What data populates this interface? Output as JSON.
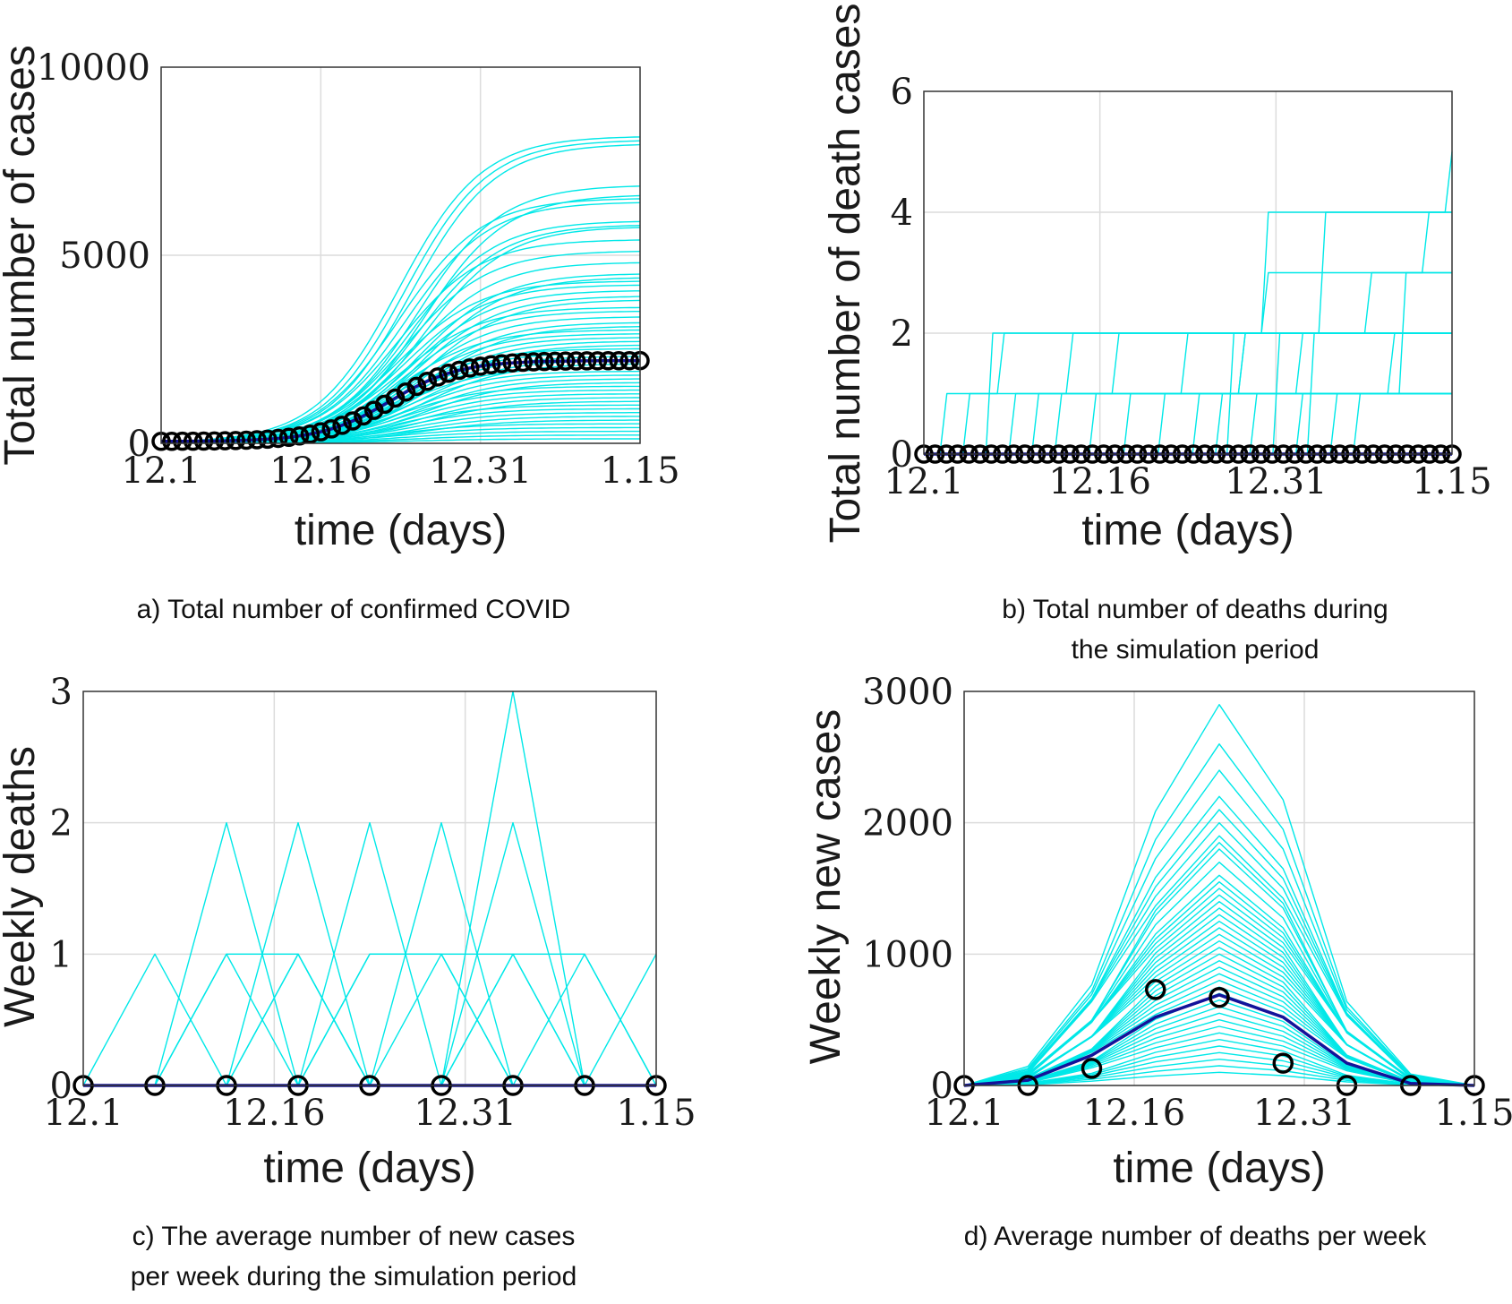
{
  "colors": {
    "simulation": "#00e8e8",
    "average": "#13139a",
    "observed": "#000000",
    "grid": "#dcdcdc",
    "axes": "#333333"
  },
  "chart_data": [
    {
      "id": "a",
      "type": "line",
      "caption": [
        "a) Total number of confirmed COVID"
      ],
      "xlabel": "time (days)",
      "ylabel": "Total number of cases",
      "xticks": [
        "12.1",
        "12.16",
        "12.31",
        "1.15"
      ],
      "yticks": [
        "0",
        "5000",
        "10000"
      ],
      "ylim": [
        0,
        10000
      ],
      "xlim": [
        0,
        46
      ],
      "grid": true,
      "series": [
        {
          "name": "simulations",
          "kind": "logistic-family",
          "final_values": [
            8150,
            8050,
            7950,
            6850,
            6600,
            6500,
            6400,
            5900,
            5800,
            5750,
            5400,
            5100,
            4800,
            4500,
            4400,
            4300,
            4200,
            4050,
            3900,
            3800,
            3600,
            3500,
            3350,
            3200,
            3100,
            3000,
            2900,
            2800,
            2700,
            2600,
            2500,
            2400,
            2300,
            2200,
            2100,
            2000,
            1900,
            1800,
            1700,
            1600,
            1500,
            1400,
            1300,
            1200,
            1100,
            1000,
            900,
            800,
            700,
            600,
            500,
            400,
            300,
            200,
            100
          ],
          "midpoint_day": 24,
          "rate": 0.25
        },
        {
          "name": "average",
          "final_value": 2150,
          "midpoint_day": 22,
          "rate": 0.3,
          "offset": 50
        },
        {
          "name": "observed",
          "marker": "circle",
          "final_value": 2150,
          "midpoint_day": 22,
          "rate": 0.3,
          "offset": 50,
          "marker_count": 46
        }
      ]
    },
    {
      "id": "b",
      "type": "line",
      "caption": [
        "b) Total number of deaths during",
        "the simulation period"
      ],
      "xlabel": "time (days)",
      "ylabel": "Total number of death cases",
      "xticks": [
        "12.1",
        "12.16",
        "12.31",
        "1.15"
      ],
      "yticks": [
        "0",
        "2",
        "4",
        "6"
      ],
      "ylim": [
        0,
        6
      ],
      "xlim": [
        0,
        46
      ],
      "grid": true,
      "series": [
        {
          "name": "simulations",
          "kind": "step",
          "lines": [
            {
              "x": [
                0,
                2,
                46
              ],
              "y": [
                0,
                1,
                1
              ]
            },
            {
              "x": [
                0,
                4,
                7,
                46
              ],
              "y": [
                0,
                1,
                2,
                2
              ]
            },
            {
              "x": [
                0,
                6,
                46
              ],
              "y": [
                0,
                2,
                2
              ]
            },
            {
              "x": [
                0,
                8,
                13,
                46
              ],
              "y": [
                0,
                1,
                2,
                2
              ]
            },
            {
              "x": [
                0,
                10,
                46
              ],
              "y": [
                0,
                1,
                1
              ]
            },
            {
              "x": [
                0,
                12,
                17,
                46
              ],
              "y": [
                0,
                1,
                2,
                2
              ]
            },
            {
              "x": [
                0,
                15,
                46
              ],
              "y": [
                0,
                1,
                1
              ]
            },
            {
              "x": [
                0,
                18,
                23,
                46
              ],
              "y": [
                0,
                1,
                2,
                2
              ]
            },
            {
              "x": [
                0,
                21,
                46
              ],
              "y": [
                0,
                1,
                1
              ]
            },
            {
              "x": [
                0,
                24,
                28,
                46
              ],
              "y": [
                0,
                1,
                2,
                2
              ]
            },
            {
              "x": [
                0,
                26,
                28,
                30,
                46
              ],
              "y": [
                0,
                1,
                2,
                3,
                3
              ]
            },
            {
              "x": [
                0,
                27,
                30,
                46
              ],
              "y": [
                0,
                2,
                4,
                4
              ]
            },
            {
              "x": [
                0,
                29,
                33,
                35,
                46
              ],
              "y": [
                0,
                1,
                2,
                4,
                4
              ]
            },
            {
              "x": [
                0,
                31,
                46
              ],
              "y": [
                0,
                2,
                2
              ]
            },
            {
              "x": [
                0,
                33,
                46
              ],
              "y": [
                0,
                1,
                1
              ]
            },
            {
              "x": [
                0,
                34,
                39,
                46
              ],
              "y": [
                0,
                2,
                3,
                3
              ]
            },
            {
              "x": [
                0,
                36,
                41,
                46
              ],
              "y": [
                0,
                1,
                2,
                2
              ]
            },
            {
              "x": [
                0,
                38,
                42,
                44,
                46
              ],
              "y": [
                0,
                1,
                3,
                4,
                5
              ]
            }
          ]
        },
        {
          "name": "average",
          "x": [
            0,
            46
          ],
          "y": [
            0,
            0
          ]
        },
        {
          "name": "observed",
          "marker": "circle",
          "value": 0,
          "marker_count": 48
        }
      ]
    },
    {
      "id": "c",
      "type": "line",
      "caption": [
        "c) The average number of new cases",
        "per week during the simulation period"
      ],
      "xlabel": "time (days)",
      "ylabel": "Weekly deaths",
      "xticks": [
        "12.1",
        "12.16",
        "12.31",
        "1.15"
      ],
      "yticks": [
        "0",
        "1",
        "2",
        "3"
      ],
      "ylim": [
        0,
        3
      ],
      "xlim": [
        0,
        8
      ],
      "grid": true,
      "series": [
        {
          "name": "simulations",
          "lines": [
            [
              0,
              1,
              0,
              0,
              0,
              0,
              0,
              0,
              0
            ],
            [
              0,
              0,
              2,
              0,
              0,
              0,
              0,
              0,
              0
            ],
            [
              0,
              0,
              1,
              1,
              0,
              0,
              0,
              0,
              0
            ],
            [
              0,
              0,
              0,
              2,
              0,
              0,
              0,
              0,
              0
            ],
            [
              0,
              0,
              0,
              1,
              0,
              1,
              0,
              0,
              0
            ],
            [
              0,
              0,
              0,
              0,
              2,
              0,
              0,
              0,
              0
            ],
            [
              0,
              0,
              0,
              0,
              1,
              1,
              0,
              0,
              0
            ],
            [
              0,
              0,
              0,
              0,
              0,
              2,
              0,
              0,
              0
            ],
            [
              0,
              0,
              0,
              0,
              0,
              0,
              3,
              0,
              0
            ],
            [
              0,
              0,
              0,
              0,
              1,
              1,
              1,
              1,
              0
            ],
            [
              0,
              0,
              0,
              0,
              0,
              0,
              2,
              0,
              0
            ],
            [
              0,
              0,
              1,
              0,
              0,
              0,
              1,
              0,
              0
            ],
            [
              0,
              0,
              0,
              0,
              0,
              0,
              0,
              1,
              0
            ],
            [
              0,
              0,
              0,
              0,
              0,
              0,
              0,
              0,
              1
            ],
            [
              0,
              0,
              0,
              1,
              0,
              0,
              0,
              0,
              0
            ],
            [
              0,
              0,
              0,
              0,
              0,
              0,
              1,
              0,
              0
            ]
          ]
        },
        {
          "name": "average",
          "values": [
            0,
            0,
            0,
            0,
            0,
            0,
            0,
            0,
            0
          ]
        },
        {
          "name": "observed",
          "marker": "circle",
          "values": [
            0,
            0,
            0,
            0,
            0,
            0,
            0,
            0,
            0
          ]
        }
      ]
    },
    {
      "id": "d",
      "type": "line",
      "caption": [
        "d) Average number of deaths per week"
      ],
      "xlabel": "time (days)",
      "ylabel": "Weekly new cases",
      "xticks": [
        "12.1",
        "12.16",
        "12.31",
        "1.15"
      ],
      "yticks": [
        "0",
        "1000",
        "2000",
        "3000"
      ],
      "ylim": [
        0,
        3000
      ],
      "xlim": [
        0,
        8
      ],
      "grid": true,
      "series": [
        {
          "name": "simulations",
          "peaks": [
            2900,
            2600,
            2400,
            2200,
            2100,
            2000,
            1900,
            1850,
            1800,
            1700,
            1600,
            1550,
            1500,
            1450,
            1400,
            1350,
            1300,
            1250,
            1200,
            1150,
            1100,
            1050,
            1000,
            950,
            900,
            850,
            800,
            750,
            700,
            650,
            600,
            550,
            500,
            450,
            400,
            350,
            300,
            250,
            200,
            150,
            100
          ],
          "shape": [
            0.0,
            0.05,
            0.3,
            0.72,
            1.0,
            0.75,
            0.25,
            0.03,
            0.0
          ]
        },
        {
          "name": "average",
          "values": [
            0,
            40,
            230,
            520,
            690,
            520,
            170,
            15,
            0
          ]
        },
        {
          "name": "observed",
          "marker": "circle",
          "values": [
            0,
            0,
            130,
            730,
            670,
            170,
            0,
            0,
            0
          ]
        }
      ]
    }
  ]
}
